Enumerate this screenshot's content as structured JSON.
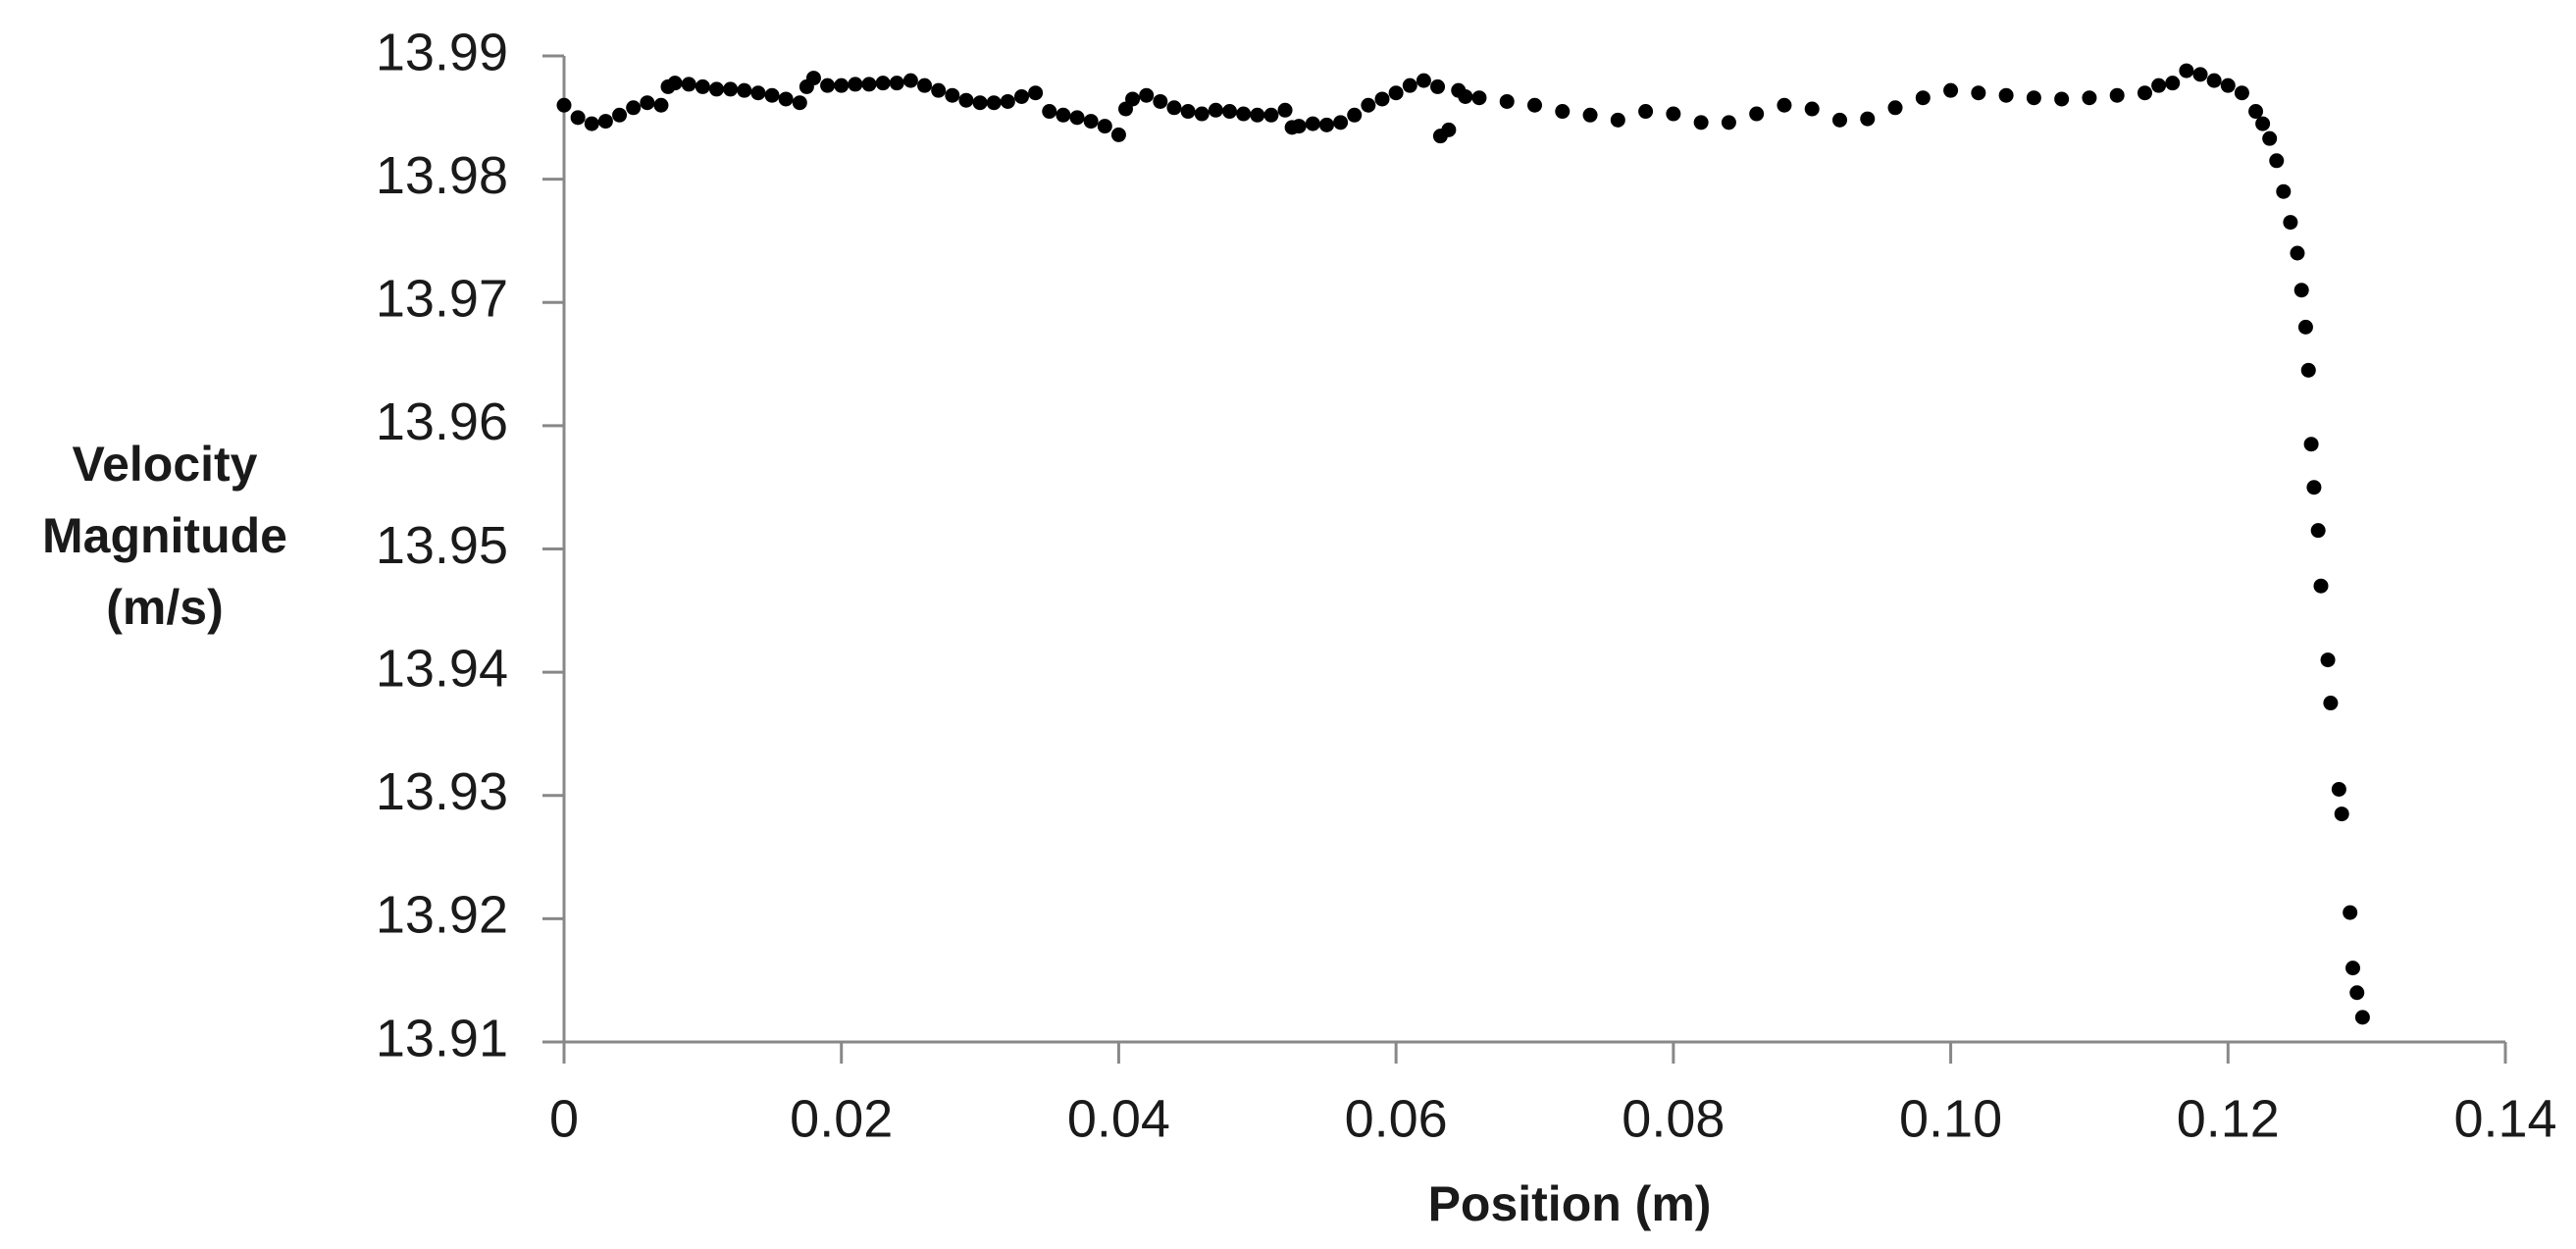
{
  "chart_data": {
    "type": "scatter",
    "xlabel": "Position (m)",
    "ylabel": [
      "Velocity",
      "Magnitude",
      "(m/s)"
    ],
    "xlim": [
      0,
      0.14
    ],
    "ylim": [
      13.91,
      13.99
    ],
    "xticks": [
      0,
      0.02,
      0.04,
      0.06,
      0.08,
      {
        "value": 0.1,
        "label": "0.10"
      },
      0.12,
      0.14
    ],
    "yticks": [
      13.91,
      13.92,
      13.93,
      13.94,
      13.95,
      13.96,
      13.97,
      13.98,
      13.99
    ],
    "grid": false,
    "color": "#000000",
    "x": [
      0,
      0.001,
      0.002,
      0.003,
      0.004,
      0.005,
      0.006,
      0.007,
      0.0075,
      0.008,
      0.009,
      0.01,
      0.011,
      0.012,
      0.013,
      0.014,
      0.015,
      0.016,
      0.017,
      0.0175,
      0.018,
      0.019,
      0.02,
      0.021,
      0.022,
      0.023,
      0.024,
      0.025,
      0.026,
      0.027,
      0.028,
      0.029,
      0.03,
      0.031,
      0.032,
      0.033,
      0.034,
      0.035,
      0.036,
      0.037,
      0.038,
      0.039,
      0.04,
      0.0405,
      0.041,
      0.042,
      0.043,
      0.044,
      0.045,
      0.046,
      0.047,
      0.048,
      0.049,
      0.05,
      0.051,
      0.052,
      0.0525,
      0.053,
      0.054,
      0.055,
      0.056,
      0.057,
      0.058,
      0.059,
      0.06,
      0.061,
      0.062,
      0.063,
      0.0632,
      0.0638,
      0.0645,
      0.065,
      0.066,
      0.068,
      0.07,
      0.072,
      0.074,
      0.076,
      0.078,
      0.08,
      0.082,
      0.084,
      0.086,
      0.088,
      0.09,
      0.092,
      0.094,
      0.096,
      0.098,
      0.1,
      0.102,
      0.104,
      0.106,
      0.108,
      0.11,
      0.112,
      0.114,
      0.115,
      0.116,
      0.117,
      0.118,
      0.119,
      0.12,
      0.121,
      0.122,
      0.1225,
      0.123,
      0.1235,
      0.124,
      0.1245,
      0.125,
      0.1253,
      0.1256,
      0.1258,
      0.126,
      0.1262,
      0.1265,
      0.1267,
      0.1272,
      0.1274,
      0.128,
      0.1282,
      0.1288,
      0.129,
      0.1293,
      0.1297
    ],
    "values": [
      13.986,
      13.985,
      13.9845,
      13.9847,
      13.9852,
      13.9858,
      13.9862,
      13.986,
      13.9875,
      13.9878,
      13.9877,
      13.9875,
      13.9873,
      13.9873,
      13.9872,
      13.987,
      13.9868,
      13.9865,
      13.9862,
      13.9875,
      13.9882,
      13.9876,
      13.9876,
      13.9877,
      13.9877,
      13.9878,
      13.9878,
      13.988,
      13.9876,
      13.9872,
      13.9868,
      13.9864,
      13.9862,
      13.9862,
      13.9863,
      13.9867,
      13.987,
      13.9855,
      13.9852,
      13.985,
      13.9847,
      13.9843,
      13.9836,
      13.9857,
      13.9865,
      13.9868,
      13.9863,
      13.9858,
      13.9855,
      13.9853,
      13.9856,
      13.9855,
      13.9853,
      13.9852,
      13.9852,
      13.9856,
      13.9842,
      13.9843,
      13.9845,
      13.9844,
      13.9846,
      13.9852,
      13.986,
      13.9865,
      13.987,
      13.9876,
      13.988,
      13.9875,
      13.9835,
      13.984,
      13.9872,
      13.9867,
      13.9866,
      13.9863,
      13.986,
      13.9855,
      13.9852,
      13.9848,
      13.9855,
      13.9853,
      13.9846,
      13.9846,
      13.9853,
      13.986,
      13.9857,
      13.9848,
      13.9849,
      13.9858,
      13.9866,
      13.9872,
      13.987,
      13.9868,
      13.9866,
      13.9865,
      13.9866,
      13.9868,
      13.987,
      13.9876,
      13.9878,
      13.9888,
      13.9885,
      13.988,
      13.9876,
      13.987,
      13.9855,
      13.9845,
      13.9833,
      13.9815,
      13.979,
      13.9765,
      13.974,
      13.971,
      13.968,
      13.9645,
      13.9585,
      13.955,
      13.9515,
      13.947,
      13.941,
      13.9375,
      13.9305,
      13.9285,
      13.9205,
      13.916,
      13.914,
      13.912
    ]
  }
}
